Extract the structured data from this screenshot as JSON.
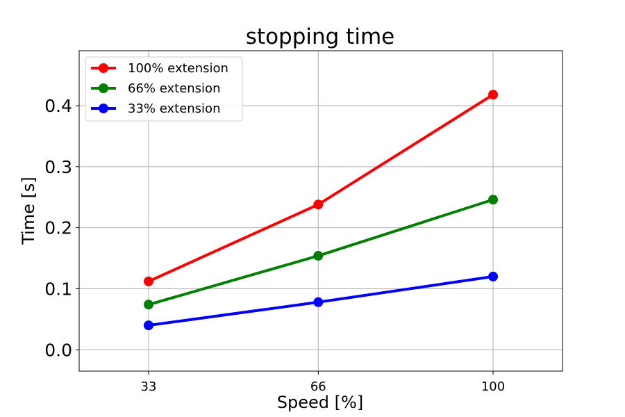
{
  "chart_data": {
    "type": "line",
    "title": "stopping time",
    "xlabel": "Speed [%]",
    "ylabel": "Time [s]",
    "x": [
      33,
      66,
      100
    ],
    "xticks": [
      "33",
      "66",
      "100"
    ],
    "xlim": [
      19.5,
      113.5
    ],
    "ylim": [
      -0.035,
      0.49
    ],
    "yticks": [
      0.0,
      0.1,
      0.2,
      0.3,
      0.4
    ],
    "ytick_labels": [
      "0.0",
      "0.1",
      "0.2",
      "0.3",
      "0.4"
    ],
    "grid": true,
    "legend_position": "top-left",
    "series": [
      {
        "name": "100% extension",
        "color": "#ff0000",
        "values": [
          0.112,
          0.238,
          0.418
        ]
      },
      {
        "name": "66% extension",
        "color": "#008000",
        "values": [
          0.074,
          0.154,
          0.246
        ]
      },
      {
        "name": "33% extension",
        "color": "#0000ff",
        "values": [
          0.04,
          0.078,
          0.12
        ]
      }
    ]
  }
}
